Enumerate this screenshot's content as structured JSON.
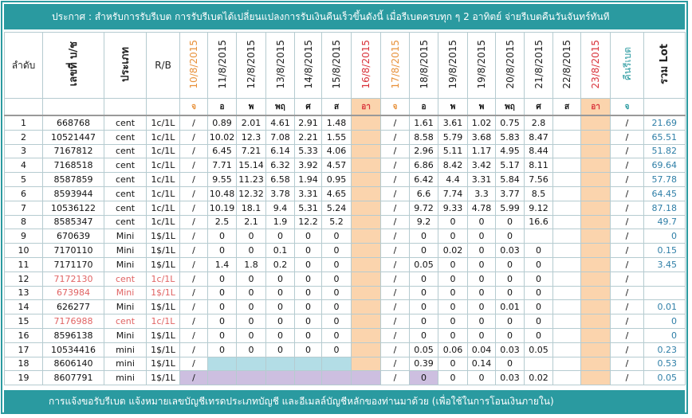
{
  "header": {
    "notice": "ประกาศ : สำหรับการรับรีเบต  การรับรีเบตได้เปลี่ยนแปลงการรับเงินคืนเร็วขึ้นดังนี้   เมื่อรีเบตครบทุก ๆ 2 อาทิตย์ จ่ายรีเบตคืนวันจันทร์ทันที"
  },
  "table": {
    "columns": [
      "ลำดับ",
      "เลขที่ บ/ช",
      "ประเภท",
      "R/B",
      "10/8/2015",
      "11/8/2015",
      "12/8/2015",
      "13/8/2015",
      "14/8/2015",
      "15/8/2015",
      "16/8/2015",
      "17/8/2015",
      "18/8/2015",
      "19/8/2015",
      "19/8/2015",
      "20/8/2015",
      "21/8/2015",
      "22/8/2015",
      "23/8/2015",
      "คืนรีเบต",
      "รวม Lot"
    ],
    "column_colors": [
      "#222",
      "#222",
      "#222",
      "#222",
      "#e8913a",
      "#222",
      "#222",
      "#222",
      "#222",
      "#222",
      "#d9323a",
      "#e8913a",
      "#222",
      "#222",
      "#222",
      "#222",
      "#222",
      "#222",
      "#d9323a",
      "#2a9aa0",
      "#222"
    ],
    "days": [
      null,
      null,
      null,
      null,
      "จ",
      "อ",
      "พ",
      "พฤ",
      "ศ",
      "ส",
      "อา",
      "จ",
      "อ",
      "พ",
      "พ",
      "พฤ",
      "ศ",
      "ส",
      "อา",
      "จ",
      null
    ],
    "weekend_color": "#fbd4ad",
    "rows": [
      {
        "cells": [
          "1",
          "668768",
          "cent",
          "1c/1L",
          "/",
          "0.89",
          "2.01",
          "4.61",
          "2.91",
          "1.48",
          null,
          "/",
          "1.61",
          "3.61",
          "1.02",
          "0.75",
          "2.8",
          null,
          null,
          "/",
          "21.69"
        ]
      },
      {
        "cells": [
          "2",
          "10521447",
          "cent",
          "1c/1L",
          "/",
          "10.02",
          "12.3",
          "7.08",
          "2.21",
          "1.55",
          null,
          "/",
          "8.58",
          "5.79",
          "3.68",
          "5.83",
          "8.47",
          null,
          null,
          "/",
          "65.51"
        ]
      },
      {
        "cells": [
          "3",
          "7167812",
          "cent",
          "1c/1L",
          "/",
          "6.45",
          "7.21",
          "6.14",
          "5.33",
          "4.06",
          null,
          "/",
          "2.96",
          "5.11",
          "1.17",
          "4.95",
          "8.44",
          null,
          null,
          "/",
          "51.82"
        ]
      },
      {
        "cells": [
          "4",
          "7168518",
          "cent",
          "1c/1L",
          "/",
          "7.71",
          "15.14",
          "6.32",
          "3.92",
          "4.57",
          null,
          "/",
          "6.86",
          "8.42",
          "3.42",
          "5.17",
          "8.11",
          null,
          null,
          "/",
          "69.64"
        ]
      },
      {
        "cells": [
          "5",
          "8587859",
          "cent",
          "1c/1L",
          "/",
          "9.55",
          "11.23",
          "6.58",
          "1.94",
          "0.95",
          null,
          "/",
          "6.42",
          "4.4",
          "3.31",
          "5.84",
          "7.56",
          null,
          null,
          "/",
          "57.78"
        ]
      },
      {
        "cells": [
          "6",
          "8593944",
          "cent",
          "1c/1L",
          "/",
          "10.48",
          "12.32",
          "3.78",
          "3.31",
          "4.65",
          null,
          "/",
          "6.6",
          "7.74",
          "3.3",
          "3.77",
          "8.5",
          null,
          null,
          "/",
          "64.45"
        ]
      },
      {
        "cells": [
          "7",
          "10536122",
          "cent",
          "1c/1L",
          "/",
          "10.19",
          "18.1",
          "9.4",
          "5.31",
          "5.24",
          null,
          "/",
          "9.72",
          "9.33",
          "4.78",
          "5.99",
          "9.12",
          null,
          null,
          "/",
          "87.18"
        ]
      },
      {
        "cells": [
          "8",
          "8585347",
          "cent",
          "1c/1L",
          "/",
          "2.5",
          "2.1",
          "1.9",
          "12.2",
          "5.2",
          null,
          "/",
          "9.2",
          "0",
          "0",
          "0",
          "16.6",
          null,
          null,
          "/",
          "49.7"
        ]
      },
      {
        "cells": [
          "9",
          "670639",
          "Mini",
          "1$/1L",
          "/",
          "0",
          "0",
          "0",
          "0",
          "0",
          null,
          "/",
          "0",
          "0",
          "0",
          "0",
          null,
          null,
          null,
          "/",
          "0"
        ]
      },
      {
        "cells": [
          "10",
          "7170110",
          "Mini",
          "1$/1L",
          "/",
          "0",
          "0",
          "0.1",
          "0",
          "0",
          null,
          "/",
          "0",
          "0.02",
          "0",
          "0.03",
          "0",
          null,
          null,
          "/",
          "0.15"
        ]
      },
      {
        "cells": [
          "11",
          "7171170",
          "Mini",
          "1$/1L",
          "/",
          "1.4",
          "1.8",
          "0.2",
          "0",
          "0",
          null,
          "/",
          "0.05",
          "0",
          "0",
          "0",
          "0",
          null,
          null,
          "/",
          "3.45"
        ]
      },
      {
        "cells": [
          "12",
          "7172130",
          "cent",
          "1c/1L",
          "/",
          "0",
          "0",
          "0",
          "0",
          "0",
          null,
          "/",
          "0",
          "0",
          "0",
          "0",
          "0",
          null,
          null,
          "/",
          null
        ],
        "color": "#e06464"
      },
      {
        "cells": [
          "13",
          "673984",
          "Mini",
          "1$/1L",
          "/",
          "0",
          "0",
          "0",
          "0",
          "0",
          null,
          "/",
          "0",
          "0",
          "0",
          "0",
          "0",
          null,
          null,
          "/",
          null
        ],
        "color": "#e06464"
      },
      {
        "cells": [
          "14",
          "626277",
          "Mini",
          "1$/1L",
          "/",
          "0",
          "0",
          "0",
          "0",
          "0",
          null,
          "/",
          "0",
          "0",
          "0",
          "0.01",
          "0",
          null,
          null,
          "/",
          "0.01"
        ]
      },
      {
        "cells": [
          "15",
          "7176988",
          "cent",
          "1c/1L",
          "/",
          "0",
          "0",
          "0",
          "0",
          "0",
          null,
          "/",
          "0",
          "0",
          "0",
          "0",
          "0",
          null,
          null,
          "/",
          "0"
        ],
        "color": "#e06464"
      },
      {
        "cells": [
          "16",
          "8596138",
          "Mini",
          "1$/1L",
          "/",
          "0",
          "0",
          "0",
          "0",
          "0",
          null,
          "/",
          "0",
          "0",
          "0",
          "0",
          "0",
          null,
          null,
          "/",
          "0"
        ]
      },
      {
        "cells": [
          "17",
          "10534416",
          "mini",
          "1$/1L",
          "/",
          "0",
          "0",
          "0",
          "0",
          "0",
          null,
          "/",
          "0.05",
          "0.06",
          "0.04",
          "0.03",
          "0.05",
          null,
          null,
          "/",
          "0.23"
        ]
      },
      {
        "cells": [
          "18",
          "8606140",
          "mini",
          "1$/1L",
          "/",
          null,
          null,
          null,
          null,
          null,
          null,
          "/",
          "0.39",
          "0",
          "0.14",
          "0",
          null,
          null,
          null,
          "/",
          "0.53"
        ]
      },
      {
        "cells": [
          "19",
          "8607791",
          "mini",
          "1$/1L",
          "/",
          null,
          null,
          null,
          null,
          null,
          null,
          "/",
          "0",
          "0",
          "0",
          "0.03",
          "0.02",
          null,
          null,
          "/",
          "0.05"
        ]
      }
    ]
  },
  "footer": {
    "note": "การแจ้งขอรับรีเบต  แจ้งหมายเลขบัญชีเทรดประเภทบัญชี และอีเมลล์บัญชีหลักของท่านมาด้วย   (เพื่อใช้ในการโอนเงินภายใน)"
  }
}
